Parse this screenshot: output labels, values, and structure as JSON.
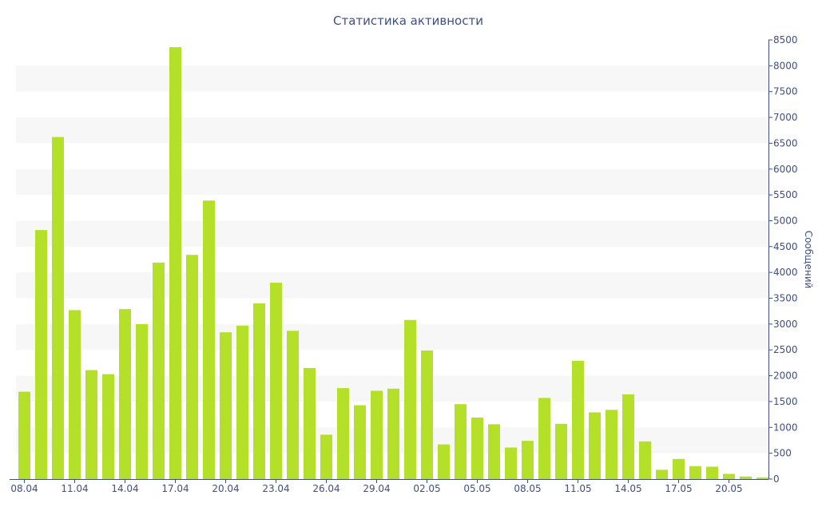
{
  "chart_data": {
    "type": "bar",
    "title": "Статистика активности",
    "xlabel": "",
    "ylabel": "Сообщений",
    "y_axis_side": "right",
    "ylim": [
      0,
      8500
    ],
    "y_ticks": [
      0,
      500,
      1000,
      1500,
      2000,
      2500,
      3000,
      3500,
      4000,
      4500,
      5000,
      5500,
      6000,
      6500,
      7000,
      7500,
      8000,
      8500
    ],
    "grid": "alternating horizontal bands",
    "categories": [
      "08.04",
      "09.04",
      "10.04",
      "11.04",
      "12.04",
      "13.04",
      "14.04",
      "15.04",
      "16.04",
      "17.04",
      "18.04",
      "19.04",
      "20.04",
      "21.04",
      "22.04",
      "23.04",
      "24.04",
      "25.04",
      "26.04",
      "27.04",
      "28.04",
      "29.04",
      "30.04",
      "01.05",
      "02.05",
      "03.05",
      "04.05",
      "05.05",
      "06.05",
      "07.05",
      "08.05",
      "09.05",
      "10.05",
      "11.05",
      "12.05",
      "13.05",
      "14.05",
      "15.05",
      "16.05",
      "17.05",
      "18.05",
      "19.05",
      "20.05",
      "21.05",
      "22.05"
    ],
    "x_tick_labels": [
      "08.04",
      "11.04",
      "14.04",
      "17.04",
      "20.04",
      "23.04",
      "26.04",
      "29.04",
      "02.05",
      "05.05",
      "08.05",
      "11.05",
      "14.05",
      "17.05",
      "20.05"
    ],
    "values": [
      1690,
      4820,
      6620,
      3270,
      2110,
      2030,
      3290,
      3000,
      4190,
      8360,
      4340,
      5390,
      2840,
      2970,
      3400,
      3800,
      2870,
      2150,
      860,
      1760,
      1430,
      1710,
      1750,
      3080,
      2490,
      670,
      1450,
      1190,
      1060,
      610,
      740,
      1570,
      1070,
      2290,
      1290,
      1340,
      1640,
      730,
      180,
      390,
      250,
      240,
      100,
      50,
      30
    ],
    "bar_color": "#b5e02a",
    "band_color": "#f7f7f7",
    "axis_color": "#3f4f82"
  }
}
